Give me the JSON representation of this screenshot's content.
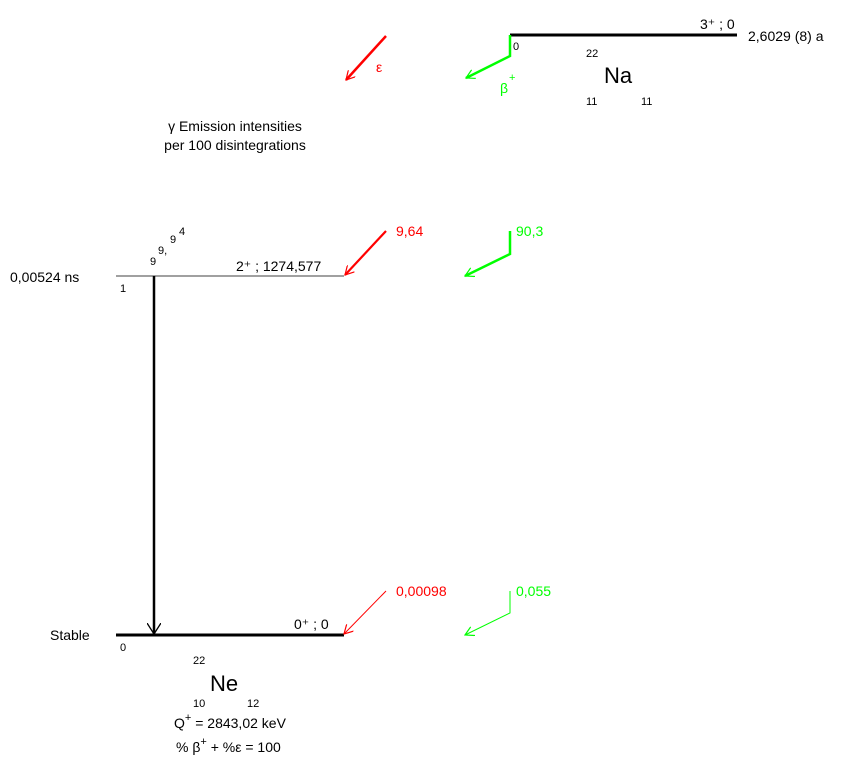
{
  "parent": {
    "mass": "22",
    "symbol": "Na",
    "z": "11",
    "n": "11",
    "level_label": "0",
    "spin_parity": "3⁺ ; 0",
    "half_life": "2,6029 (8) a"
  },
  "decay_modes": {
    "ec_symbol": "ε",
    "beta_symbol": "β",
    "beta_sign": "+"
  },
  "legend": {
    "line1": "γ Emission intensities",
    "line2": "per 100 disintegrations"
  },
  "levels": {
    "excited": {
      "lifetime": "0,00524 ns",
      "index": "1",
      "spin_energy": "2⁺ ; 1274,577",
      "ec_intensity": "9,64",
      "beta_intensity": "90,3",
      "gamma_label_a": "9",
      "gamma_label_b": "9,",
      "gamma_label_c": "9",
      "gamma_label_exp": "4"
    },
    "ground": {
      "lifetime": "Stable",
      "index": "0",
      "spin_energy": "0⁺ ; 0",
      "ec_intensity": "0,00098",
      "beta_intensity": "0,055"
    }
  },
  "daughter": {
    "mass": "22",
    "symbol": "Ne",
    "z": "10",
    "n": "12"
  },
  "footer": {
    "q_label": "Q",
    "q_sup": "+",
    "q_value": " = 2843,02 keV",
    "pct_prefix": "% β",
    "pct_sup": "+",
    "pct_rest": " + %ε  = 100"
  },
  "colors": {
    "ec": "#ff0000",
    "beta": "#00ff00",
    "level": "#000000"
  }
}
